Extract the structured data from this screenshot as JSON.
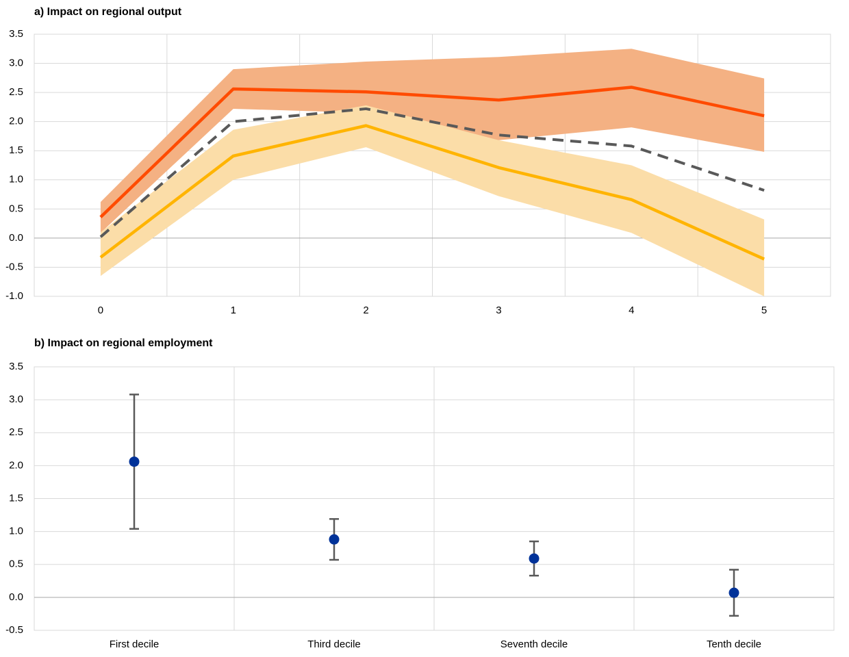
{
  "chart_data": [
    {
      "type": "line",
      "title": "a) Impact on regional output",
      "categories": [
        "0",
        "1",
        "2",
        "3",
        "4",
        "5"
      ],
      "ylim": [
        -1,
        3.5
      ],
      "yticks": [
        {
          "value": -1,
          "label": "-1.0"
        },
        -0.5,
        {
          "value": 0,
          "label": "0.0"
        },
        0.5,
        {
          "value": 1,
          "label": "1.0"
        },
        1.5,
        {
          "value": 2,
          "label": "2.0"
        },
        2.5,
        {
          "value": 3,
          "label": "3.0"
        },
        3.5
      ],
      "grid": true,
      "series": [
        {
          "color": "#ff4b00",
          "band_color": "#f4b183",
          "dashed": false,
          "values": [
            0.36,
            2.56,
            2.51,
            2.37,
            2.59,
            2.1
          ],
          "lower": [
            0.09,
            2.22,
            2.15,
            1.68,
            1.9,
            1.48
          ],
          "upper": [
            0.62,
            2.9,
            3.03,
            3.11,
            3.25,
            2.74
          ]
        },
        {
          "color": "#ffb400",
          "band_color": "#fbdda8",
          "dashed": false,
          "values": [
            -0.33,
            1.41,
            1.93,
            1.21,
            0.66,
            -0.36
          ],
          "lower": [
            -0.65,
            1.0,
            1.56,
            0.72,
            0.09,
            -1.0
          ],
          "upper": [
            0.1,
            1.86,
            2.28,
            1.68,
            1.25,
            0.32
          ]
        },
        {
          "color": "#595959",
          "dashed": true,
          "values": [
            0.02,
            2.0,
            2.22,
            1.77,
            1.58,
            0.82
          ]
        }
      ]
    },
    {
      "type": "errorbar",
      "title": "b) Impact on regional employment",
      "categories": [
        "First decile",
        "Third decile",
        "Seventh decile",
        "Tenth decile"
      ],
      "ylim": [
        -0.5,
        3.5
      ],
      "yticks": [
        -0.5,
        {
          "value": 0,
          "label": "0.0"
        },
        0.5,
        {
          "value": 1,
          "label": "1.0"
        },
        1.5,
        {
          "value": 2,
          "label": "2.0"
        },
        2.5,
        {
          "value": 3,
          "label": "3.0"
        },
        3.5
      ],
      "grid": true,
      "color": "#003299",
      "error_color": "#595959",
      "values": [
        2.06,
        0.88,
        0.59,
        0.07
      ],
      "errors": [
        1.02,
        0.31,
        0.26,
        0.35
      ]
    }
  ]
}
